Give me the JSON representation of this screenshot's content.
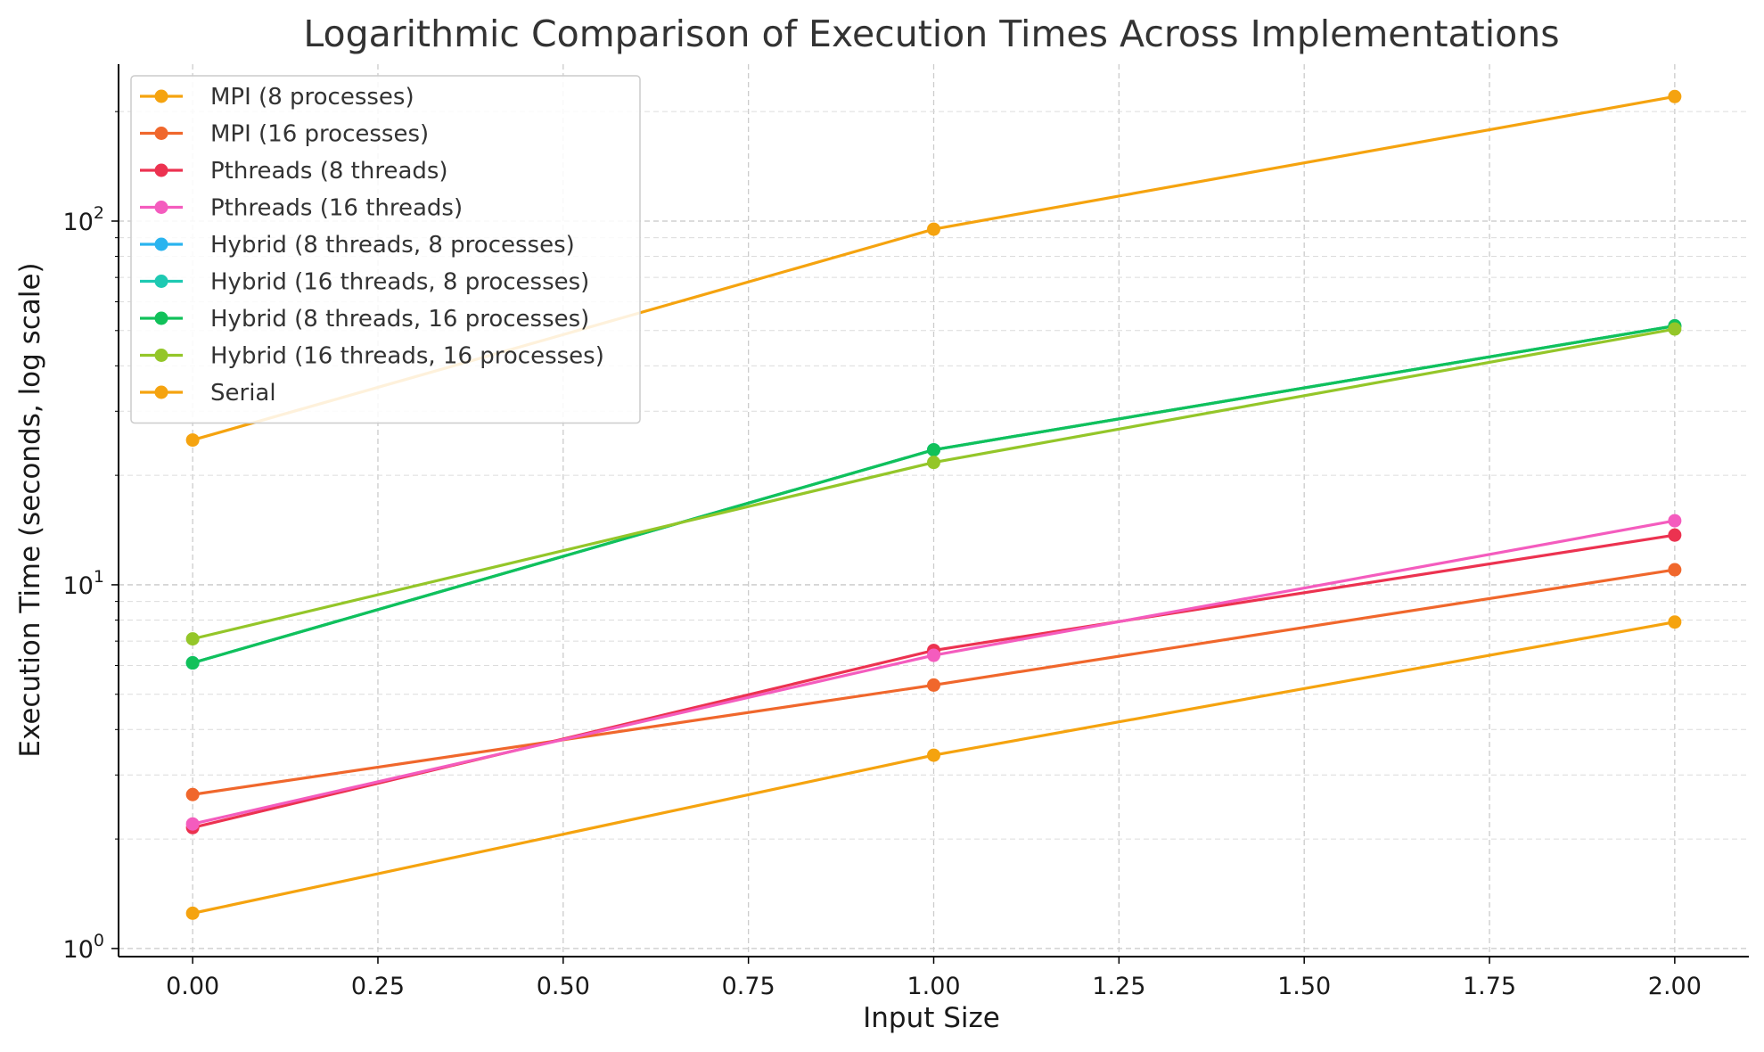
{
  "chart_data": {
    "type": "line",
    "title": "Logarithmic Comparison of Execution Times Across Implementations",
    "xlabel": "Input Size",
    "ylabel": "Execution Time (seconds, log scale)",
    "x": [
      0,
      1,
      2
    ],
    "xlim": [
      -0.1,
      2.1
    ],
    "ylim": [
      0.95,
      270
    ],
    "yscale": "log",
    "grid": true,
    "legend_position": "top-left",
    "x_ticks": [
      {
        "value": 0,
        "label": "0.00"
      },
      {
        "value": 0.25,
        "label": "0.25"
      },
      {
        "value": 0.5,
        "label": "0.50"
      },
      {
        "value": 0.75,
        "label": "0.75"
      },
      {
        "value": 1,
        "label": "1.00"
      },
      {
        "value": 1.25,
        "label": "1.25"
      },
      {
        "value": 1.5,
        "label": "1.50"
      },
      {
        "value": 1.75,
        "label": "1.75"
      },
      {
        "value": 2,
        "label": "2.00"
      }
    ],
    "y_ticks": [
      {
        "value": 1,
        "base": "10",
        "exp": "0"
      },
      {
        "value": 10,
        "base": "10",
        "exp": "1"
      },
      {
        "value": 100,
        "base": "10",
        "exp": "2"
      }
    ],
    "series": [
      {
        "name": "MPI (8 processes)",
        "color": "#f5a30f",
        "values": [
          1.25,
          3.4,
          7.9
        ]
      },
      {
        "name": "MPI (16 processes)",
        "color": "#f0672c",
        "values": [
          2.65,
          5.3,
          11.0
        ]
      },
      {
        "name": "Pthreads (8 threads)",
        "color": "#ec3250",
        "values": [
          2.15,
          6.6,
          13.7
        ]
      },
      {
        "name": "Pthreads (16 threads)",
        "color": "#f45cbe",
        "values": [
          2.2,
          6.4,
          15.0
        ]
      },
      {
        "name": "Hybrid (8 threads, 8 processes)",
        "color": "#2ab4ef",
        "values": [
          6.1,
          23.5,
          51.5
        ]
      },
      {
        "name": "Hybrid (16 threads, 8 processes)",
        "color": "#1ec9b2",
        "values": [
          6.1,
          23.5,
          51.5
        ]
      },
      {
        "name": "Hybrid (8 threads, 16 processes)",
        "color": "#11c15a",
        "values": [
          6.1,
          23.5,
          51.5
        ]
      },
      {
        "name": "Hybrid (16 threads, 16 processes)",
        "color": "#94c629",
        "values": [
          7.1,
          21.7,
          50.5
        ]
      },
      {
        "name": "Serial",
        "color": "#f5a30f",
        "values": [
          25.0,
          95.0,
          220.0
        ]
      }
    ]
  }
}
